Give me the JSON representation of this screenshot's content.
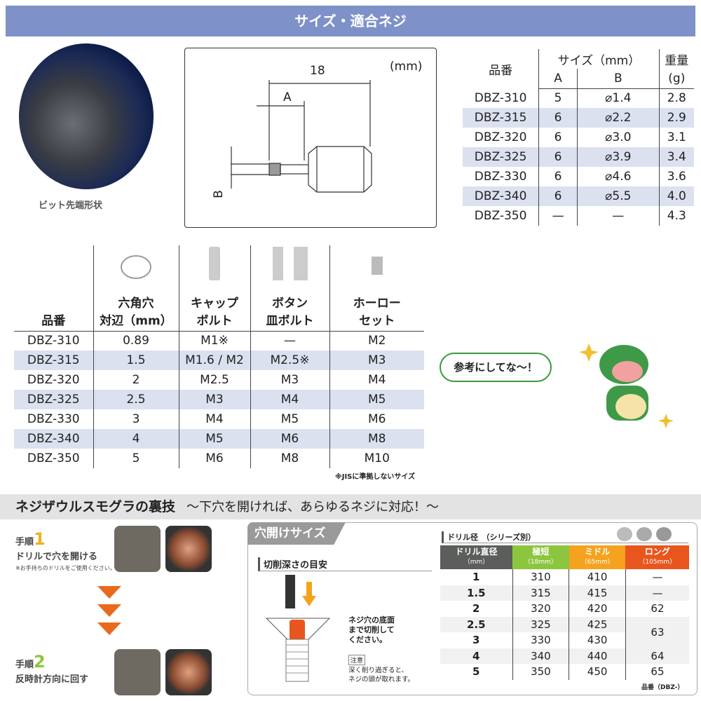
{
  "header": {
    "title": "サイズ・適合ネジ"
  },
  "bit": {
    "label": "ビット先端形状"
  },
  "diagram": {
    "unit": "(mm)",
    "length": "18",
    "label_a": "A",
    "label_b": "B"
  },
  "size_table": {
    "headers": {
      "part": "品番",
      "size": "サイズ（mm）",
      "a": "A",
      "b": "B",
      "weight": "重量",
      "weight_unit": "(g)"
    },
    "rows": [
      [
        "DBZ-310",
        "5",
        "⌀1.4",
        "2.8"
      ],
      [
        "DBZ-315",
        "6",
        "⌀2.2",
        "2.9"
      ],
      [
        "DBZ-320",
        "6",
        "⌀3.0",
        "3.1"
      ],
      [
        "DBZ-325",
        "6",
        "⌀3.9",
        "3.4"
      ],
      [
        "DBZ-330",
        "6",
        "⌀4.6",
        "3.6"
      ],
      [
        "DBZ-340",
        "6",
        "⌀5.5",
        "4.0"
      ],
      [
        "DBZ-350",
        "—",
        "—",
        "4.3"
      ]
    ]
  },
  "screw_table": {
    "headers": {
      "part": "品番",
      "hex_1": "六角穴",
      "hex_2": "対辺（mm）",
      "cap_1": "キャップ",
      "cap_2": "ボルト",
      "btn_1": "ボタン",
      "btn_2": "皿ボルト",
      "set_1": "ホーロー",
      "set_2": "セット"
    },
    "rows": [
      [
        "DBZ-310",
        "0.89",
        "M1※",
        "—",
        "M2"
      ],
      [
        "DBZ-315",
        "1.5",
        "M1.6 / M2",
        "M2.5※",
        "M3"
      ],
      [
        "DBZ-320",
        "2",
        "M2.5",
        "M3",
        "M4"
      ],
      [
        "DBZ-325",
        "2.5",
        "M3",
        "M4",
        "M5"
      ],
      [
        "DBZ-330",
        "3",
        "M4",
        "M5",
        "M6"
      ],
      [
        "DBZ-340",
        "4",
        "M5",
        "M6",
        "M8"
      ],
      [
        "DBZ-350",
        "5",
        "M6",
        "M8",
        "M10"
      ]
    ],
    "note": "※JISに準拠しないサイズ"
  },
  "mascot": {
    "speech": "参考にしてな～！"
  },
  "section": {
    "title": "ネジザウルスモグラの裏技",
    "subtitle": "～下穴を開ければ、あらゆるネジに対応！～"
  },
  "steps": [
    {
      "label": "手順",
      "num": "1",
      "text": "ドリルで穴を開ける",
      "note": "※お手持ちのドリルをご使用ください。"
    },
    {
      "label": "手順",
      "num": "2",
      "text": "反時計方向に回す"
    }
  ],
  "hole": {
    "tab": "穴開けサイズ",
    "depth_title": "切削深さの目安",
    "depth_text": [
      "ネジ穴の底面",
      "まで切削して",
      "ください。"
    ],
    "caution_label": "注意",
    "caution_text": [
      "深く削り過ぎると、",
      "ネジの頭が取れます。"
    ],
    "table_title": "ドリル径　（シリーズ別）",
    "headers": [
      {
        "l1": "ドリル直径",
        "l2": "（mm）",
        "color": "#5b5e5b"
      },
      {
        "l1": "極短",
        "l2": "（18mm）",
        "color": "#8cc63f"
      },
      {
        "l1": "ミドル",
        "l2": "（65mm）",
        "color": "#f5a31e"
      },
      {
        "l1": "ロング",
        "l2": "（105mm）",
        "color": "#e8561e"
      }
    ],
    "rows": [
      [
        "1",
        "310",
        "410",
        "—"
      ],
      [
        "1.5",
        "315",
        "415",
        "—"
      ],
      [
        "2",
        "320",
        "420",
        "62"
      ],
      [
        "2.5",
        "325",
        "425",
        "63"
      ],
      [
        "3",
        "330",
        "430",
        ""
      ],
      [
        "4",
        "340",
        "440",
        "64"
      ],
      [
        "5",
        "350",
        "450",
        "65"
      ]
    ],
    "footer": "品番（DBZ-）"
  }
}
